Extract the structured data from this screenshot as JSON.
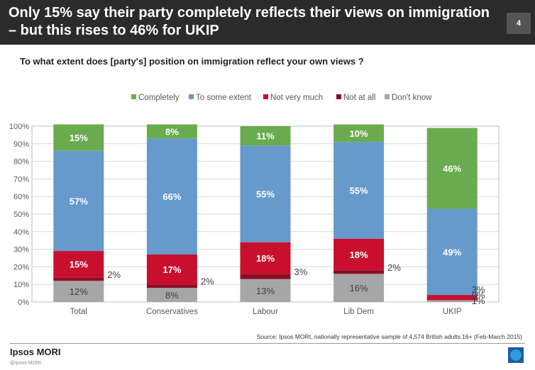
{
  "header": {
    "title": "Only 15% say their party completely reflects their views on immigration – but this rises to 46% for UKIP",
    "page_number": "4"
  },
  "question": "To what extent does [party's] position on immigration reflect your own views ?",
  "footer": {
    "source": "Source: Ipsos MORI,  nationally representative sample of 4,574 British adults 16+ (Feb-March 2015)",
    "brand": "Ipsos MORI",
    "copyright": "@Ipsos MORI",
    "logo_icon": "ipsos-logo-icon"
  },
  "chart_data": {
    "type": "bar",
    "stacked": true,
    "categories": [
      "Total",
      "Conservatives",
      "Labour",
      "Lib Dem",
      "UKIP"
    ],
    "ylim": [
      0,
      100
    ],
    "yticks": [
      "0%",
      "10%",
      "20%",
      "30%",
      "40%",
      "50%",
      "60%",
      "70%",
      "80%",
      "90%",
      "100%"
    ],
    "grid": true,
    "legend_position": "top",
    "series": [
      {
        "name": "Don't know",
        "color": "#a6a6a6",
        "values": [
          12,
          8,
          13,
          16,
          1
        ],
        "labels": [
          "12%",
          "8%",
          "13%",
          "16%",
          "1%"
        ]
      },
      {
        "name": "Not at all",
        "color": "#8b0d25",
        "values": [
          2,
          2,
          3,
          2,
          0
        ],
        "labels": [
          "2%",
          "2%",
          "3%",
          "2%",
          "0%"
        ]
      },
      {
        "name": "Not very much",
        "color": "#c8102e",
        "values": [
          15,
          17,
          18,
          18,
          3
        ],
        "labels": [
          "15%",
          "17%",
          "18%",
          "18%",
          "3%"
        ]
      },
      {
        "name": "To some extent",
        "color": "#6699cc",
        "values": [
          57,
          66,
          55,
          55,
          49
        ],
        "labels": [
          "57%",
          "66%",
          "55%",
          "55%",
          "49%"
        ]
      },
      {
        "name": "Completely",
        "color": "#6aab4f",
        "values": [
          15,
          8,
          11,
          10,
          46
        ],
        "labels": [
          "15%",
          "8%",
          "11%",
          "10%",
          "46%"
        ]
      }
    ],
    "legend_order": [
      "Completely",
      "To some extent",
      "Not very much",
      "Not at all",
      "Don't know"
    ]
  }
}
